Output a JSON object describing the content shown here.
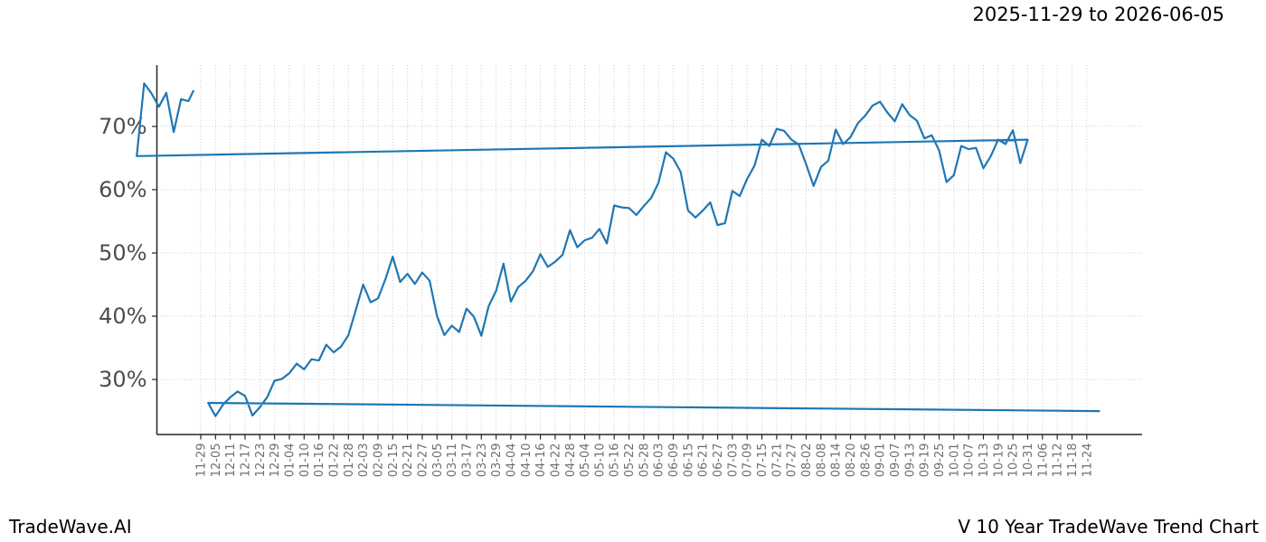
{
  "header": {
    "title": "2025-11-29 to 2026-06-05"
  },
  "footer": {
    "left": "TradeWave.AI",
    "right": "V 10 Year TradeWave Trend Chart"
  },
  "chart_data": {
    "type": "line",
    "title": "2025-11-29 to 2026-06-05",
    "xlabel": "",
    "ylabel": "",
    "grid": true,
    "legend_position": "none",
    "ylim": [
      21.3,
      79.7
    ],
    "y_ticks": [
      30,
      40,
      50,
      60,
      70
    ],
    "y_tick_suffix": "%",
    "x_tick_interval_days": 6,
    "x_tick_labels": [
      "11-29",
      "12-05",
      "12-11",
      "12-17",
      "12-23",
      "12-29",
      "01-04",
      "01-10",
      "01-16",
      "01-22",
      "01-28",
      "02-03",
      "02-09",
      "02-15",
      "02-21",
      "02-27",
      "03-05",
      "03-11",
      "03-17",
      "03-23",
      "03-29",
      "04-04",
      "04-10",
      "04-16",
      "04-22",
      "04-28",
      "05-04",
      "05-10",
      "05-16",
      "05-22",
      "05-28",
      "06-03",
      "06-09",
      "06-15",
      "06-21",
      "06-27",
      "07-03",
      "07-09",
      "07-15",
      "07-21",
      "07-27",
      "08-02",
      "08-08",
      "08-14",
      "08-20",
      "08-26",
      "09-01",
      "09-07",
      "09-13",
      "09-19",
      "09-25",
      "10-01",
      "10-07",
      "10-13",
      "10-19",
      "10-25",
      "10-31",
      "11-06",
      "11-12",
      "11-18",
      "11-24"
    ],
    "highlight_span": {
      "start": "11-29",
      "end": "06-05",
      "color": "#e8f0e5"
    },
    "series": [
      {
        "name": "trend",
        "color": "#1f77b4",
        "points": [
          [
            "11-29",
            25.0
          ],
          [
            "12-02",
            26.3
          ],
          [
            "12-05",
            24.2
          ],
          [
            "12-08",
            26.0
          ],
          [
            "12-11",
            27.2
          ],
          [
            "12-14",
            28.1
          ],
          [
            "12-17",
            27.4
          ],
          [
            "12-20",
            24.3
          ],
          [
            "12-23",
            25.6
          ],
          [
            "12-26",
            27.2
          ],
          [
            "12-29",
            29.8
          ],
          [
            "01-01",
            30.1
          ],
          [
            "01-04",
            31.0
          ],
          [
            "01-07",
            32.5
          ],
          [
            "01-10",
            31.6
          ],
          [
            "01-13",
            33.2
          ],
          [
            "01-16",
            33.0
          ],
          [
            "01-19",
            35.5
          ],
          [
            "01-22",
            34.3
          ],
          [
            "01-25",
            35.2
          ],
          [
            "01-28",
            37.0
          ],
          [
            "01-31",
            41.0
          ],
          [
            "02-03",
            45.0
          ],
          [
            "02-06",
            42.2
          ],
          [
            "02-09",
            42.8
          ],
          [
            "02-12",
            45.8
          ],
          [
            "02-15",
            49.4
          ],
          [
            "02-18",
            45.4
          ],
          [
            "02-21",
            46.7
          ],
          [
            "02-24",
            45.1
          ],
          [
            "02-27",
            46.9
          ],
          [
            "03-02",
            45.6
          ],
          [
            "03-05",
            40.0
          ],
          [
            "03-08",
            37.0
          ],
          [
            "03-11",
            38.5
          ],
          [
            "03-14",
            37.5
          ],
          [
            "03-17",
            41.2
          ],
          [
            "03-20",
            39.9
          ],
          [
            "03-23",
            36.9
          ],
          [
            "03-26",
            41.6
          ],
          [
            "03-29",
            44.0
          ],
          [
            "04-01",
            48.3
          ],
          [
            "04-04",
            42.3
          ],
          [
            "04-07",
            44.6
          ],
          [
            "04-10",
            45.6
          ],
          [
            "04-13",
            47.1
          ],
          [
            "04-16",
            49.8
          ],
          [
            "04-19",
            47.8
          ],
          [
            "04-22",
            48.6
          ],
          [
            "04-25",
            49.7
          ],
          [
            "04-28",
            53.6
          ],
          [
            "05-01",
            50.9
          ],
          [
            "05-04",
            52.0
          ],
          [
            "05-07",
            52.4
          ],
          [
            "05-10",
            53.8
          ],
          [
            "05-13",
            51.5
          ],
          [
            "05-16",
            57.5
          ],
          [
            "05-19",
            57.2
          ],
          [
            "05-22",
            57.1
          ],
          [
            "05-25",
            56.0
          ],
          [
            "05-28",
            57.4
          ],
          [
            "05-31",
            58.7
          ],
          [
            "06-03",
            61.1
          ],
          [
            "06-06",
            65.9
          ],
          [
            "06-09",
            64.9
          ],
          [
            "06-12",
            62.8
          ],
          [
            "06-15",
            56.7
          ],
          [
            "06-18",
            55.6
          ],
          [
            "06-21",
            56.7
          ],
          [
            "06-24",
            58.0
          ],
          [
            "06-27",
            54.4
          ],
          [
            "06-30",
            54.7
          ],
          [
            "07-03",
            59.8
          ],
          [
            "07-06",
            59.0
          ],
          [
            "07-09",
            61.7
          ],
          [
            "07-12",
            63.8
          ],
          [
            "07-15",
            67.9
          ],
          [
            "07-18",
            66.9
          ],
          [
            "07-21",
            69.6
          ],
          [
            "07-24",
            69.3
          ],
          [
            "07-27",
            67.9
          ],
          [
            "07-30",
            67.1
          ],
          [
            "08-02",
            64.0
          ],
          [
            "08-05",
            60.6
          ],
          [
            "08-08",
            63.6
          ],
          [
            "08-11",
            64.6
          ],
          [
            "08-14",
            69.5
          ],
          [
            "08-17",
            67.2
          ],
          [
            "08-20",
            68.3
          ],
          [
            "08-23",
            70.5
          ],
          [
            "08-26",
            71.7
          ],
          [
            "08-29",
            73.3
          ],
          [
            "09-01",
            73.9
          ],
          [
            "09-04",
            72.2
          ],
          [
            "09-07",
            70.8
          ],
          [
            "09-10",
            73.5
          ],
          [
            "09-13",
            71.8
          ],
          [
            "09-16",
            70.9
          ],
          [
            "09-19",
            68.1
          ],
          [
            "09-22",
            68.6
          ],
          [
            "09-25",
            66.2
          ],
          [
            "09-28",
            61.2
          ],
          [
            "10-01",
            62.3
          ],
          [
            "10-04",
            66.9
          ],
          [
            "10-07",
            66.4
          ],
          [
            "10-10",
            66.6
          ],
          [
            "10-13",
            63.4
          ],
          [
            "10-16",
            65.3
          ],
          [
            "10-19",
            67.9
          ],
          [
            "10-22",
            67.2
          ],
          [
            "10-25",
            69.4
          ],
          [
            "10-28",
            64.2
          ],
          [
            "10-31",
            67.9
          ],
          [
            "11-03",
            65.3
          ],
          [
            "11-06",
            76.8
          ],
          [
            "11-09",
            75.2
          ],
          [
            "11-12",
            73.1
          ],
          [
            "11-15",
            75.3
          ],
          [
            "11-18",
            69.1
          ],
          [
            "11-21",
            74.3
          ],
          [
            "11-24",
            74.0
          ],
          [
            "11-26",
            75.6
          ]
        ]
      }
    ],
    "colors": {
      "line": "#1f77b4",
      "highlight": "#e8f0e5",
      "grid": "#c9c9c9",
      "spine": "#262626",
      "y_tick_label": "#4d4d4d",
      "x_tick_label": "#6e6e6e",
      "background": "#ffffff"
    }
  }
}
